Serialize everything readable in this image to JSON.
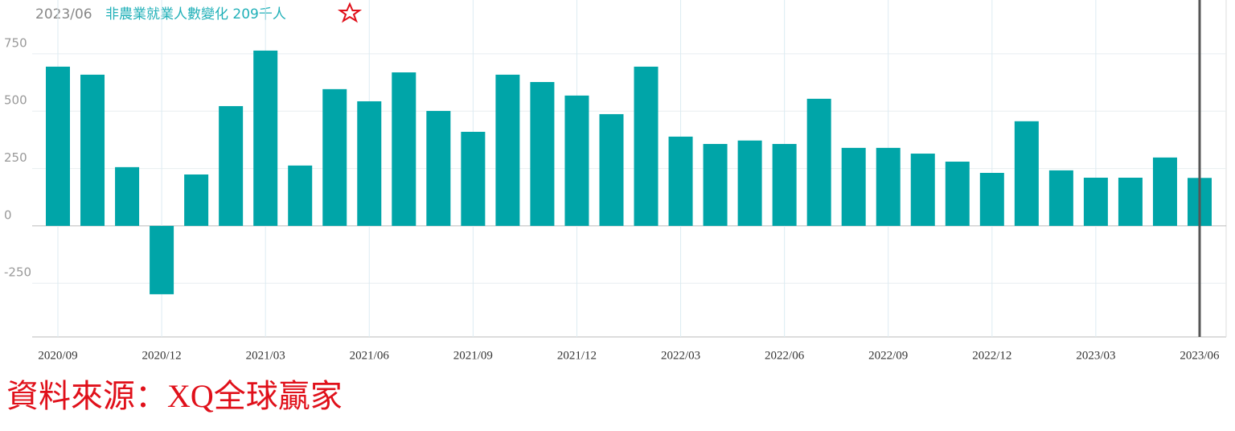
{
  "chart_data": {
    "type": "bar",
    "header_date": "2023/06",
    "title": "非農業就業人數變化 209千人",
    "source": "資料來源：XQ全球贏家",
    "categories": [
      "2020/09",
      null,
      null,
      "2020/12",
      null,
      null,
      "2021/03",
      null,
      null,
      "2021/06",
      null,
      null,
      "2021/09",
      null,
      null,
      "2021/12",
      null,
      null,
      "2022/03",
      null,
      null,
      "2022/06",
      null,
      null,
      "2022/09",
      null,
      null,
      "2022/12",
      null,
      null,
      "2023/03",
      null,
      null,
      "2023/06"
    ],
    "values": [
      694,
      659,
      256,
      -298,
      224,
      522,
      764,
      263,
      596,
      543,
      669,
      501,
      410,
      659,
      627,
      568,
      487,
      694,
      389,
      357,
      372,
      357,
      554,
      340,
      340,
      315,
      280,
      231,
      456,
      242,
      210,
      210,
      298,
      209
    ],
    "color": "#00a5a8",
    "ylim": [
      -484,
      967
    ],
    "yticks": [
      -250,
      0,
      250,
      500,
      750
    ],
    "grid": true
  }
}
